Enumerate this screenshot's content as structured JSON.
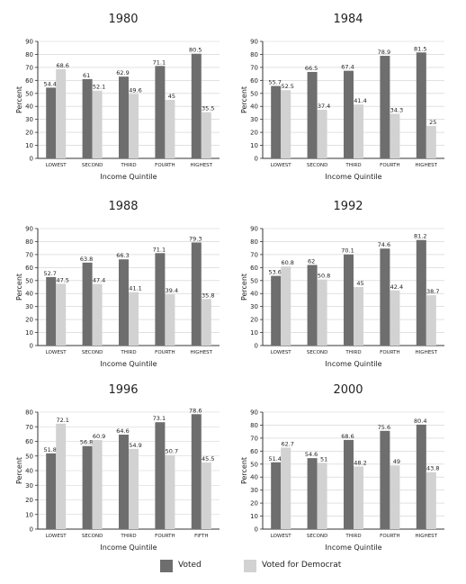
{
  "colors": {
    "voted": "#6e6e6e",
    "democrat": "#d2d2d2",
    "axis": "#333333",
    "grid": "#cfcfcf"
  },
  "legend": {
    "voted": "Voted",
    "democrat": "Voted for Democrat"
  },
  "chart_data": [
    {
      "type": "bar",
      "title": "1980",
      "ylabel": "Percent",
      "xlabel": "Income Quintile",
      "ylim": [
        0,
        90
      ],
      "yticks": [
        "0",
        "10",
        "20",
        "30",
        "40",
        "50",
        "60",
        "70",
        "80",
        "90"
      ],
      "categories": [
        "LOWEST",
        "SECOND",
        "THIRD",
        "FOURTH",
        "HIGHEST"
      ],
      "series": [
        {
          "name": "Voted",
          "values": [
            54.4,
            61,
            62.9,
            71.1,
            80.5
          ],
          "labels": [
            "54.4",
            "61",
            "62.9",
            "71.1",
            "80.5"
          ]
        },
        {
          "name": "Voted for Democrat",
          "values": [
            68.6,
            52.1,
            49.6,
            45,
            35.5
          ],
          "labels": [
            "68.6",
            "52.1",
            "49.6",
            "45",
            "35.5"
          ]
        }
      ]
    },
    {
      "type": "bar",
      "title": "1984",
      "ylabel": "Percent",
      "xlabel": "Income Quintile",
      "ylim": [
        0,
        90
      ],
      "yticks": [
        "0",
        "10",
        "20",
        "30",
        "40",
        "50",
        "60",
        "70",
        "80",
        "90"
      ],
      "categories": [
        "LOWEST",
        "SECOND",
        "THIRD",
        "FOURTH",
        "HIGHEST"
      ],
      "series": [
        {
          "name": "Voted",
          "values": [
            55.7,
            66.5,
            67.4,
            78.9,
            81.5
          ],
          "labels": [
            "55.7",
            "66.5",
            "67.4",
            "78.9",
            "81.5"
          ]
        },
        {
          "name": "Voted for Democrat",
          "values": [
            52.5,
            37.4,
            41.4,
            34.3,
            25
          ],
          "labels": [
            "52.5",
            "37.4",
            "41.4",
            "34.3",
            "25"
          ]
        }
      ]
    },
    {
      "type": "bar",
      "title": "1988",
      "ylabel": "Percent",
      "xlabel": "Income Quintile",
      "ylim": [
        0,
        90
      ],
      "yticks": [
        "0",
        "10",
        "20",
        "30",
        "40",
        "50",
        "60",
        "70",
        "80",
        "90"
      ],
      "categories": [
        "LOWEST",
        "SECOND",
        "THIRD",
        "FOURTH",
        "HIGHEST"
      ],
      "series": [
        {
          "name": "Voted",
          "values": [
            52.7,
            63.8,
            66.3,
            71.1,
            79.3
          ],
          "labels": [
            "52.7",
            "63.8",
            "66.3",
            "71.1",
            "79.3"
          ]
        },
        {
          "name": "Voted for Democrat",
          "values": [
            47.5,
            47.4,
            41.1,
            39.4,
            35.8
          ],
          "labels": [
            "47.5",
            "47.4",
            "41.1",
            "39.4",
            "35.8"
          ]
        }
      ]
    },
    {
      "type": "bar",
      "title": "1992",
      "ylabel": "Percent",
      "xlabel": "Income Quintile",
      "ylim": [
        0,
        90
      ],
      "yticks": [
        "0",
        "10",
        "20",
        "30",
        "40",
        "50",
        "60",
        "70",
        "80",
        "90"
      ],
      "categories": [
        "LOWEST",
        "SECOND",
        "THIRD",
        "FOURTH",
        "HIGHEST"
      ],
      "series": [
        {
          "name": "Voted",
          "values": [
            53.6,
            62,
            70.1,
            74.6,
            81.2
          ],
          "labels": [
            "53.6",
            "62",
            "70.1",
            "74.6",
            "81.2"
          ]
        },
        {
          "name": "Voted for Democrat",
          "values": [
            60.8,
            50.8,
            45,
            42.4,
            38.7
          ],
          "labels": [
            "60.8",
            "50.8",
            "45",
            "42.4",
            "38.7"
          ]
        }
      ]
    },
    {
      "type": "bar",
      "title": "1996",
      "ylabel": "Percent",
      "xlabel": "Income Quintile",
      "ylim": [
        0,
        80
      ],
      "yticks": [
        "0",
        "10",
        "20",
        "30",
        "40",
        "50",
        "60",
        "70",
        "80"
      ],
      "categories": [
        "LOWEST",
        "SECOND",
        "THIRD",
        "FOURTH",
        "FIFTH"
      ],
      "series": [
        {
          "name": "Voted",
          "values": [
            51.8,
            56.8,
            64.6,
            73.1,
            78.6
          ],
          "labels": [
            "51.8",
            "56.8",
            "64.6",
            "73.1",
            "78.6"
          ]
        },
        {
          "name": "Voted for Democrat",
          "values": [
            72.1,
            60.9,
            54.9,
            50.7,
            45.5
          ],
          "labels": [
            "72.1",
            "60.9",
            "54.9",
            "50.7",
            "45.5"
          ]
        }
      ]
    },
    {
      "type": "bar",
      "title": "2000",
      "ylabel": "Percent",
      "xlabel": "Income Quintile",
      "ylim": [
        0,
        90
      ],
      "yticks": [
        "0",
        "10",
        "20",
        "30",
        "40",
        "50",
        "60",
        "70",
        "80",
        "90"
      ],
      "categories": [
        "LOWEST",
        "SECOND",
        "THIRD",
        "FOURTH",
        "HIGHEST"
      ],
      "series": [
        {
          "name": "Voted",
          "values": [
            51.4,
            54.6,
            68.6,
            75.6,
            80.4
          ],
          "labels": [
            "51.4",
            "54.6",
            "68.6",
            "75.6",
            "80.4"
          ]
        },
        {
          "name": "Voted for Democrat",
          "values": [
            62.7,
            51,
            48.2,
            49,
            43.8
          ],
          "labels": [
            "62.7",
            "51",
            "48.2",
            "49",
            "43.8"
          ]
        }
      ]
    }
  ]
}
